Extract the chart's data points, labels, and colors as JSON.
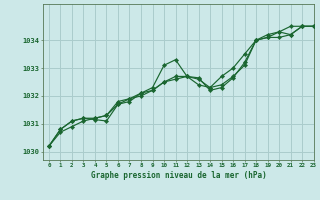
{
  "title": "Graphe pression niveau de la mer (hPa)",
  "background_color": "#cce8e8",
  "grid_color": "#aacccc",
  "line_color": "#1a6630",
  "xlim": [
    -0.5,
    23
  ],
  "ylim": [
    1029.7,
    1035.3
  ],
  "yticks": [
    1030,
    1031,
    1032,
    1033,
    1034
  ],
  "xticks": [
    0,
    1,
    2,
    3,
    4,
    5,
    6,
    7,
    8,
    9,
    10,
    11,
    12,
    13,
    14,
    15,
    16,
    17,
    18,
    19,
    20,
    21,
    22,
    23
  ],
  "series": [
    [
      1030.2,
      1030.7,
      1030.9,
      1031.1,
      1031.2,
      1031.3,
      1031.8,
      1031.9,
      1032.0,
      1032.2,
      1032.5,
      1032.7,
      1032.7,
      1032.4,
      1032.3,
      1032.4,
      1032.7,
      1033.1,
      1034.0,
      1034.1,
      1034.1,
      1034.2,
      1034.5,
      1034.5
    ],
    [
      1030.2,
      1030.8,
      1031.1,
      1031.2,
      1031.2,
      1031.3,
      1031.7,
      1031.9,
      1032.1,
      1032.3,
      1033.1,
      1033.3,
      1032.7,
      1032.65,
      1032.2,
      1032.3,
      1032.65,
      1033.2,
      1034.0,
      1034.1,
      1034.3,
      1034.2,
      1034.5,
      1034.5
    ],
    [
      1030.2,
      1030.8,
      1031.1,
      1031.2,
      1031.15,
      1031.1,
      1031.7,
      1031.8,
      1032.1,
      1032.2,
      1032.5,
      1032.6,
      1032.7,
      1032.6,
      1032.3,
      1032.7,
      1033.0,
      1033.5,
      1034.0,
      1034.2,
      1034.3,
      1034.5,
      1034.5,
      1034.5
    ]
  ]
}
